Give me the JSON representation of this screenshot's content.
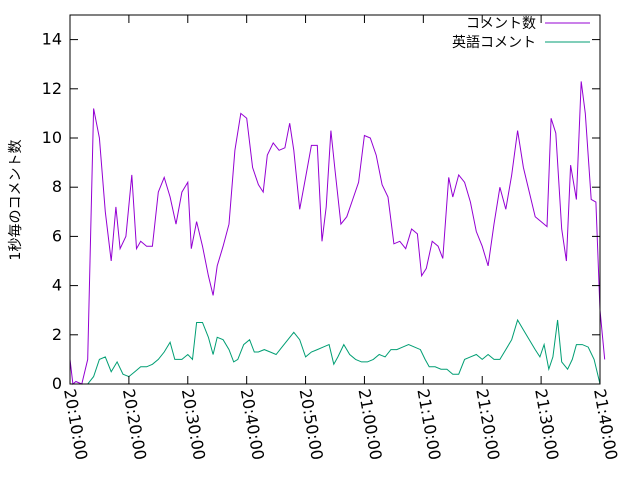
{
  "chart_data": {
    "type": "line",
    "title": "",
    "xlabel": "",
    "ylabel": "1秒毎のコメント数",
    "x_unit": "minutes",
    "x_range": [
      0,
      90
    ],
    "x_ticks": [
      0,
      10,
      20,
      30,
      40,
      50,
      60,
      70,
      80,
      90
    ],
    "x_tick_labels": [
      "20:10:00",
      "20:20:00",
      "20:30:00",
      "20:40:00",
      "20:50:00",
      "21:00:00",
      "21:10:00",
      "21:20:00",
      "21:30:00",
      "21:40:00"
    ],
    "ylim": [
      0,
      15
    ],
    "y_ticks": [
      0,
      2,
      4,
      6,
      8,
      10,
      12,
      14
    ],
    "grid": false,
    "legend_position": "top-right",
    "series": [
      {
        "name": "コメント数",
        "color": "#9400d3",
        "points": [
          [
            0.0,
            1.0
          ],
          [
            0.5,
            0.0
          ],
          [
            1.0,
            0.1
          ],
          [
            2.0,
            0.0
          ],
          [
            3.0,
            1.0
          ],
          [
            4.0,
            11.2
          ],
          [
            5.0,
            10.0
          ],
          [
            6.0,
            7.0
          ],
          [
            7.0,
            5.0
          ],
          [
            7.8,
            7.2
          ],
          [
            8.5,
            5.5
          ],
          [
            9.5,
            6.0
          ],
          [
            10.5,
            8.5
          ],
          [
            11.3,
            5.5
          ],
          [
            12.0,
            5.8
          ],
          [
            13.0,
            5.6
          ],
          [
            14.0,
            5.6
          ],
          [
            15.0,
            7.8
          ],
          [
            16.0,
            8.4
          ],
          [
            17.0,
            7.6
          ],
          [
            18.0,
            6.5
          ],
          [
            19.0,
            7.8
          ],
          [
            20.0,
            8.2
          ],
          [
            20.6,
            5.5
          ],
          [
            21.5,
            6.6
          ],
          [
            22.5,
            5.6
          ],
          [
            23.5,
            4.4
          ],
          [
            24.3,
            3.6
          ],
          [
            25.0,
            4.8
          ],
          [
            26.0,
            5.6
          ],
          [
            27.0,
            6.5
          ],
          [
            28.0,
            9.5
          ],
          [
            29.0,
            11.0
          ],
          [
            30.0,
            10.8
          ],
          [
            31.0,
            8.8
          ],
          [
            32.0,
            8.1
          ],
          [
            32.8,
            7.8
          ],
          [
            33.5,
            9.3
          ],
          [
            34.5,
            9.8
          ],
          [
            35.5,
            9.5
          ],
          [
            36.5,
            9.6
          ],
          [
            37.3,
            10.6
          ],
          [
            38.0,
            9.5
          ],
          [
            39.0,
            7.1
          ],
          [
            40.0,
            8.4
          ],
          [
            41.0,
            9.7
          ],
          [
            42.0,
            9.7
          ],
          [
            42.8,
            5.8
          ],
          [
            43.5,
            7.2
          ],
          [
            44.3,
            10.3
          ],
          [
            45.0,
            8.7
          ],
          [
            46.0,
            6.5
          ],
          [
            47.0,
            6.8
          ],
          [
            48.0,
            7.5
          ],
          [
            49.0,
            8.2
          ],
          [
            50.0,
            10.1
          ],
          [
            51.0,
            10.0
          ],
          [
            52.0,
            9.3
          ],
          [
            53.0,
            8.1
          ],
          [
            54.0,
            7.6
          ],
          [
            55.0,
            5.7
          ],
          [
            56.0,
            5.8
          ],
          [
            57.0,
            5.5
          ],
          [
            58.0,
            6.3
          ],
          [
            59.0,
            6.1
          ],
          [
            59.7,
            4.4
          ],
          [
            60.5,
            4.7
          ],
          [
            61.5,
            5.8
          ],
          [
            62.5,
            5.6
          ],
          [
            63.3,
            5.1
          ],
          [
            64.3,
            8.4
          ],
          [
            65.0,
            7.6
          ],
          [
            66.0,
            8.5
          ],
          [
            67.0,
            8.2
          ],
          [
            68.0,
            7.4
          ],
          [
            69.0,
            6.2
          ],
          [
            70.0,
            5.6
          ],
          [
            71.0,
            4.8
          ],
          [
            72.0,
            6.5
          ],
          [
            73.0,
            8.0
          ],
          [
            74.0,
            7.1
          ],
          [
            75.0,
            8.5
          ],
          [
            76.0,
            10.3
          ],
          [
            77.0,
            8.8
          ],
          [
            78.0,
            7.8
          ],
          [
            79.0,
            6.8
          ],
          [
            80.0,
            6.6
          ],
          [
            81.0,
            6.4
          ],
          [
            81.7,
            10.8
          ],
          [
            82.5,
            10.2
          ],
          [
            83.5,
            6.3
          ],
          [
            84.3,
            5.0
          ],
          [
            85.0,
            8.9
          ],
          [
            86.0,
            7.5
          ],
          [
            86.8,
            12.3
          ],
          [
            87.5,
            11.0
          ],
          [
            88.5,
            7.5
          ],
          [
            89.3,
            7.4
          ],
          [
            90.0,
            3.0
          ],
          [
            90.8,
            1.0
          ]
        ]
      },
      {
        "name": "英語コメント",
        "color": "#009e73",
        "points": [
          [
            0.0,
            0.0
          ],
          [
            0.5,
            0.0
          ],
          [
            1.0,
            0.0
          ],
          [
            2.0,
            0.0
          ],
          [
            3.0,
            0.0
          ],
          [
            4.0,
            0.3
          ],
          [
            5.0,
            1.0
          ],
          [
            6.0,
            1.1
          ],
          [
            7.0,
            0.5
          ],
          [
            8.0,
            0.9
          ],
          [
            9.0,
            0.4
          ],
          [
            10.0,
            0.3
          ],
          [
            11.0,
            0.5
          ],
          [
            12.0,
            0.7
          ],
          [
            13.0,
            0.7
          ],
          [
            14.0,
            0.8
          ],
          [
            15.0,
            1.0
          ],
          [
            16.0,
            1.3
          ],
          [
            17.0,
            1.7
          ],
          [
            17.8,
            1.0
          ],
          [
            19.0,
            1.0
          ],
          [
            20.0,
            1.2
          ],
          [
            20.8,
            1.0
          ],
          [
            21.5,
            2.5
          ],
          [
            22.5,
            2.5
          ],
          [
            23.5,
            1.9
          ],
          [
            24.3,
            1.2
          ],
          [
            25.0,
            1.9
          ],
          [
            26.0,
            1.8
          ],
          [
            27.0,
            1.4
          ],
          [
            27.8,
            0.9
          ],
          [
            28.5,
            1.0
          ],
          [
            29.5,
            1.6
          ],
          [
            30.5,
            1.8
          ],
          [
            31.3,
            1.3
          ],
          [
            32.0,
            1.3
          ],
          [
            33.0,
            1.4
          ],
          [
            34.0,
            1.3
          ],
          [
            35.0,
            1.2
          ],
          [
            36.0,
            1.5
          ],
          [
            37.0,
            1.8
          ],
          [
            38.0,
            2.1
          ],
          [
            39.0,
            1.8
          ],
          [
            40.0,
            1.1
          ],
          [
            41.0,
            1.3
          ],
          [
            42.0,
            1.4
          ],
          [
            43.0,
            1.5
          ],
          [
            44.0,
            1.6
          ],
          [
            44.8,
            0.8
          ],
          [
            45.5,
            1.1
          ],
          [
            46.5,
            1.6
          ],
          [
            47.5,
            1.2
          ],
          [
            48.5,
            1.0
          ],
          [
            49.5,
            0.9
          ],
          [
            50.5,
            0.9
          ],
          [
            51.5,
            1.0
          ],
          [
            52.5,
            1.2
          ],
          [
            53.5,
            1.1
          ],
          [
            54.5,
            1.4
          ],
          [
            55.5,
            1.4
          ],
          [
            56.5,
            1.5
          ],
          [
            57.5,
            1.6
          ],
          [
            58.5,
            1.5
          ],
          [
            59.5,
            1.4
          ],
          [
            60.3,
            1.0
          ],
          [
            61.0,
            0.7
          ],
          [
            62.0,
            0.7
          ],
          [
            63.0,
            0.6
          ],
          [
            64.0,
            0.6
          ],
          [
            65.0,
            0.4
          ],
          [
            66.0,
            0.4
          ],
          [
            67.0,
            1.0
          ],
          [
            68.0,
            1.1
          ],
          [
            69.0,
            1.2
          ],
          [
            70.0,
            1.0
          ],
          [
            71.0,
            1.2
          ],
          [
            72.0,
            1.0
          ],
          [
            73.0,
            1.0
          ],
          [
            74.0,
            1.4
          ],
          [
            75.0,
            1.8
          ],
          [
            76.0,
            2.6
          ],
          [
            77.0,
            2.2
          ],
          [
            78.0,
            1.8
          ],
          [
            79.0,
            1.4
          ],
          [
            79.8,
            1.1
          ],
          [
            80.5,
            1.6
          ],
          [
            81.3,
            0.6
          ],
          [
            82.0,
            1.1
          ],
          [
            82.8,
            2.6
          ],
          [
            83.5,
            0.9
          ],
          [
            84.5,
            0.6
          ],
          [
            85.3,
            1.0
          ],
          [
            86.0,
            1.6
          ],
          [
            87.0,
            1.6
          ],
          [
            88.0,
            1.5
          ],
          [
            89.0,
            1.0
          ],
          [
            90.0,
            0.0
          ]
        ]
      }
    ]
  }
}
